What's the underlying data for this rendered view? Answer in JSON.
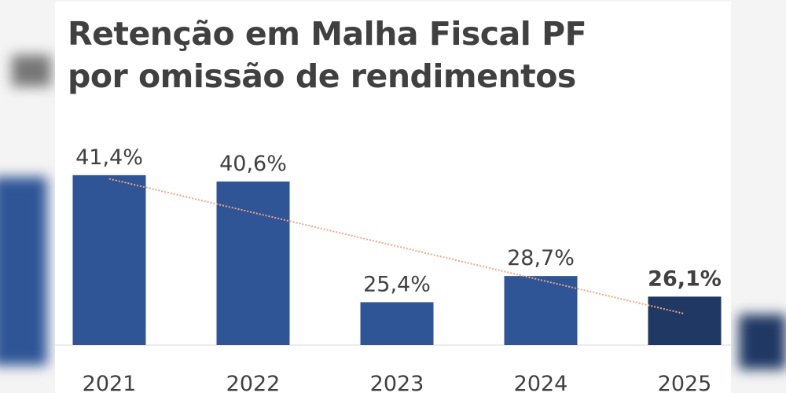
{
  "chart_data": {
    "type": "bar",
    "title": "Retenção em Malha Fiscal PF por omissão de rendimentos",
    "title_lines": [
      "Retenção em Malha Fiscal PF",
      "por omissão de rendimentos"
    ],
    "categories": [
      "2021",
      "2022",
      "2023",
      "2024",
      "2025"
    ],
    "values": [
      41.4,
      40.6,
      25.4,
      28.7,
      26.1
    ],
    "labels": [
      "41,4%",
      "40,6%",
      "25,4%",
      "28,7%",
      "26,1%"
    ],
    "highlight_index": 4,
    "ylim": [
      20,
      45
    ],
    "trendline": "linear",
    "grid": false,
    "xlabel": "",
    "ylabel": "",
    "colors": {
      "bar": "#2f5597",
      "highlight": "#1f3864",
      "trend": "#f4a582",
      "text": "#404040"
    }
  }
}
